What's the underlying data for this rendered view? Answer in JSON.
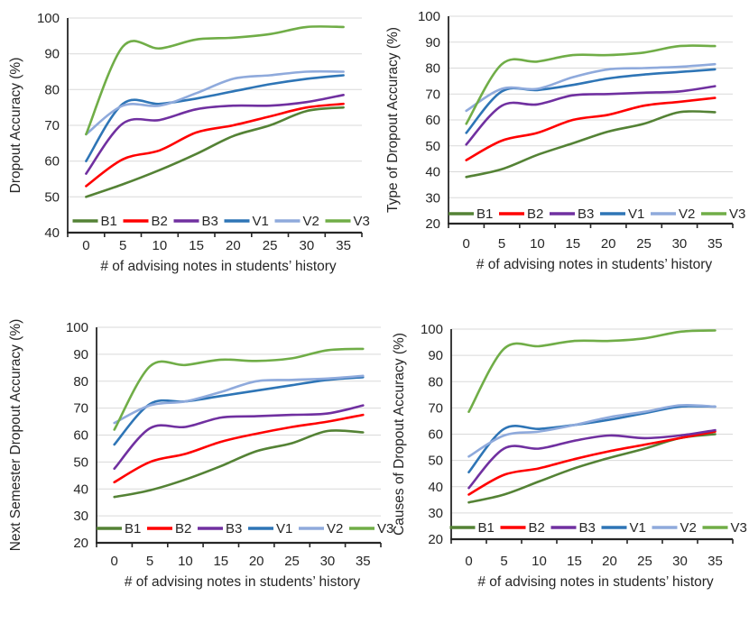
{
  "page": {
    "background": "#FFFFFF"
  },
  "palette": {
    "B1": "#548235",
    "B2": "#FF0000",
    "B3": "#7030A0",
    "V1": "#2E75B6",
    "V2": "#8FAADC",
    "V3": "#70AD47",
    "gridline": "#D9D9D9",
    "axis": "#262626",
    "text": "#262626"
  },
  "chart_data": [
    {
      "type": "line",
      "title": "",
      "ylabel": "Dropout Accuracy (%)",
      "xlabel": "# of advising notes in students’ history",
      "x": [
        0,
        5,
        10,
        15,
        20,
        25,
        30,
        35
      ],
      "ylim": [
        40,
        100
      ],
      "ytick_step": 10,
      "grid": true,
      "legend_position": "inside-bottom",
      "legend": [
        "B1",
        "B2",
        "B3",
        "V1",
        "V2",
        "V3"
      ],
      "series": [
        {
          "name": "B1",
          "color": "#548235",
          "values": [
            50,
            53.5,
            57.5,
            62,
            67,
            70,
            74,
            75
          ]
        },
        {
          "name": "B2",
          "color": "#FF0000",
          "values": [
            53,
            60.5,
            63,
            68,
            70,
            72.5,
            75,
            76
          ]
        },
        {
          "name": "B3",
          "color": "#7030A0",
          "values": [
            56.5,
            70.5,
            71.5,
            74.5,
            75.5,
            75.5,
            76.5,
            78.5
          ]
        },
        {
          "name": "V1",
          "color": "#2E75B6",
          "values": [
            60,
            76,
            76,
            77.5,
            79.5,
            81.5,
            83,
            84
          ]
        },
        {
          "name": "V2",
          "color": "#8FAADC",
          "values": [
            67.5,
            75.5,
            75.5,
            79,
            83,
            84,
            85,
            85
          ]
        },
        {
          "name": "V3",
          "color": "#70AD47",
          "values": [
            67.5,
            92,
            91.5,
            94,
            94.5,
            95.5,
            97.5,
            97.5
          ]
        }
      ]
    },
    {
      "type": "line",
      "title": "",
      "ylabel": "Type of Dropout Accuracy (%)",
      "xlabel": "# of advising notes in students’ history",
      "x": [
        0,
        5,
        10,
        15,
        20,
        25,
        30,
        35
      ],
      "ylim": [
        20,
        100
      ],
      "ytick_step": 10,
      "grid": true,
      "legend_position": "inside-bottom",
      "legend": [
        "B1",
        "B2",
        "B3",
        "V1",
        "V2",
        "V3"
      ],
      "series": [
        {
          "name": "B1",
          "color": "#548235",
          "values": [
            38,
            41,
            46.5,
            51,
            55.5,
            58.5,
            63,
            63
          ]
        },
        {
          "name": "B2",
          "color": "#FF0000",
          "values": [
            44.5,
            52,
            55,
            60,
            62,
            65.5,
            67,
            68.5
          ]
        },
        {
          "name": "B3",
          "color": "#7030A0",
          "values": [
            50.5,
            65.5,
            66,
            69.5,
            70,
            70.5,
            71,
            73
          ]
        },
        {
          "name": "V1",
          "color": "#2E75B6",
          "values": [
            55,
            71,
            71.5,
            73.5,
            76,
            77.5,
            78.5,
            79.5
          ]
        },
        {
          "name": "V2",
          "color": "#8FAADC",
          "values": [
            63.5,
            72,
            72,
            76.5,
            79.5,
            80,
            80.5,
            81.5
          ]
        },
        {
          "name": "V3",
          "color": "#70AD47",
          "values": [
            58.5,
            81.5,
            82.5,
            85,
            85,
            86,
            88.5,
            88.5
          ]
        }
      ]
    },
    {
      "type": "line",
      "title": "",
      "ylabel": "Next Semester  Dropout Accuracy (%)",
      "xlabel": "# of advising notes in students’ history",
      "x": [
        0,
        5,
        10,
        15,
        20,
        25,
        30,
        35
      ],
      "ylim": [
        20,
        100
      ],
      "ytick_step": 10,
      "grid": true,
      "legend_position": "inside-bottom",
      "legend": [
        "B1",
        "B2",
        "B3",
        "V1",
        "V2",
        "V3"
      ],
      "series": [
        {
          "name": "B1",
          "color": "#548235",
          "values": [
            37,
            39.5,
            43.5,
            48.5,
            54,
            57,
            61.5,
            61
          ]
        },
        {
          "name": "B2",
          "color": "#FF0000",
          "values": [
            42.5,
            50,
            53,
            57.5,
            60.5,
            63,
            65,
            67.5
          ]
        },
        {
          "name": "B3",
          "color": "#7030A0",
          "values": [
            47.5,
            62.5,
            63,
            66.5,
            67,
            67.5,
            68,
            71
          ]
        },
        {
          "name": "V1",
          "color": "#2E75B6",
          "values": [
            56.5,
            71.5,
            72.5,
            74.5,
            76.5,
            78.5,
            80.5,
            81.5
          ]
        },
        {
          "name": "V2",
          "color": "#8FAADC",
          "values": [
            64.5,
            71,
            72.5,
            76,
            80,
            80.5,
            81,
            82
          ]
        },
        {
          "name": "V3",
          "color": "#70AD47",
          "values": [
            62,
            85.5,
            86,
            88,
            87.5,
            88.5,
            91.5,
            92
          ]
        }
      ]
    },
    {
      "type": "line",
      "title": "",
      "ylabel": "Causes of Dropout Accuracy (%)",
      "xlabel": "# of advising notes in students’ history",
      "x": [
        0,
        5,
        10,
        15,
        20,
        25,
        30,
        35
      ],
      "ylim": [
        20,
        100
      ],
      "ytick_step": 10,
      "grid": true,
      "legend_position": "inside-bottom",
      "legend": [
        "B1",
        "B2",
        "B3",
        "V1",
        "V2",
        "V3"
      ],
      "series": [
        {
          "name": "B1",
          "color": "#548235",
          "values": [
            34,
            37,
            42,
            47,
            51,
            54.5,
            58.5,
            60
          ]
        },
        {
          "name": "B2",
          "color": "#FF0000",
          "values": [
            37,
            44.5,
            47,
            50.5,
            53.5,
            56,
            58.5,
            61
          ]
        },
        {
          "name": "B3",
          "color": "#7030A0",
          "values": [
            39.5,
            54.5,
            54.5,
            57.5,
            59.5,
            58.5,
            59.5,
            61.5
          ]
        },
        {
          "name": "V1",
          "color": "#2E75B6",
          "values": [
            45.5,
            62,
            62,
            63.5,
            65.5,
            68,
            70.5,
            70.5
          ]
        },
        {
          "name": "V2",
          "color": "#8FAADC",
          "values": [
            51.5,
            59.5,
            61,
            63.5,
            66.5,
            68.5,
            71,
            70.5
          ]
        },
        {
          "name": "V3",
          "color": "#70AD47",
          "values": [
            68.5,
            92.5,
            93.5,
            95.5,
            95.5,
            96.5,
            99,
            99.5
          ]
        }
      ]
    }
  ]
}
